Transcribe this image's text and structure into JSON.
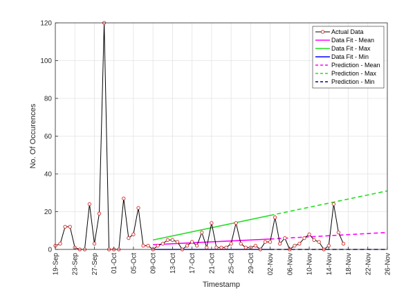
{
  "chart_data": {
    "type": "line",
    "title": "",
    "xlabel": "Timestamp",
    "ylabel": "No. Of Occurences",
    "ylim": [
      0,
      120
    ],
    "yticks": [
      0,
      20,
      40,
      60,
      80,
      100,
      120
    ],
    "xlim": [
      "2018-09-19",
      "2018-11-26"
    ],
    "xtick_dates": [
      "2018-09-19",
      "2018-09-23",
      "2018-09-27",
      "2018-10-01",
      "2018-10-05",
      "2018-10-09",
      "2018-10-13",
      "2018-10-17",
      "2018-10-21",
      "2018-10-25",
      "2018-10-29",
      "2018-11-02",
      "2018-11-06",
      "2018-11-10",
      "2018-11-14",
      "2018-11-18",
      "2018-11-22",
      "2018-11-26"
    ],
    "xtick_labels": [
      "19-Sep",
      "23-Sep",
      "27-Sep",
      "01-Oct",
      "05-Oct",
      "09-Oct",
      "13-Oct",
      "17-Oct",
      "21-Oct",
      "25-Oct",
      "29-Oct",
      "02-Nov",
      "06-Nov",
      "10-Nov",
      "14-Nov",
      "18-Nov",
      "22-Nov",
      "26-Nov"
    ],
    "grid": true,
    "legend_position": "top-right",
    "series": [
      {
        "name": "Actual Data",
        "color": "#000000",
        "marker_color": "#d62728",
        "x": [
          "2018-09-19",
          "2018-09-20",
          "2018-09-21",
          "2018-09-22",
          "2018-09-23",
          "2018-09-24",
          "2018-09-25",
          "2018-09-26",
          "2018-09-27",
          "2018-09-28",
          "2018-09-29",
          "2018-09-30",
          "2018-10-01",
          "2018-10-02",
          "2018-10-03",
          "2018-10-04",
          "2018-10-05",
          "2018-10-06",
          "2018-10-07",
          "2018-10-08",
          "2018-10-09",
          "2018-10-10",
          "2018-10-11",
          "2018-10-12",
          "2018-10-13",
          "2018-10-14",
          "2018-10-15",
          "2018-10-16",
          "2018-10-17",
          "2018-10-18",
          "2018-10-19",
          "2018-10-20",
          "2018-10-21",
          "2018-10-22",
          "2018-10-23",
          "2018-10-24",
          "2018-10-25",
          "2018-10-26",
          "2018-10-27",
          "2018-10-28",
          "2018-10-29",
          "2018-10-30",
          "2018-10-31",
          "2018-11-01",
          "2018-11-02",
          "2018-11-03",
          "2018-11-04",
          "2018-11-05",
          "2018-11-06",
          "2018-11-07",
          "2018-11-08",
          "2018-11-09",
          "2018-11-10",
          "2018-11-11",
          "2018-11-12",
          "2018-11-13",
          "2018-11-14",
          "2018-11-15",
          "2018-11-16",
          "2018-11-17"
        ],
        "y": [
          2,
          3,
          12,
          12,
          1,
          0,
          0,
          24,
          3,
          19,
          120,
          0,
          0,
          0,
          27,
          6,
          8,
          22,
          2,
          2,
          0,
          2,
          3,
          5,
          5,
          4,
          0,
          2,
          4,
          2,
          9,
          1,
          14,
          1,
          1,
          1,
          3,
          14,
          3,
          1,
          1,
          2,
          0,
          4,
          4,
          17,
          3,
          6,
          0,
          2,
          3,
          6,
          8,
          5,
          4,
          0,
          2,
          24,
          9,
          3
        ]
      },
      {
        "name": "Data Fit - Mean",
        "color": "#ff00ff",
        "style": "solid",
        "x": [
          "2018-10-09",
          "2018-11-02"
        ],
        "y": [
          2.5,
          5.5
        ]
      },
      {
        "name": "Data Fit - Max",
        "color": "#22dd22",
        "style": "solid",
        "x": [
          "2018-10-09",
          "2018-11-02"
        ],
        "y": [
          5,
          18
        ]
      },
      {
        "name": "Data Fit - Min",
        "color": "#0000ff",
        "style": "solid",
        "x": [
          "2018-10-09",
          "2018-11-02"
        ],
        "y": [
          0,
          0
        ]
      },
      {
        "name": "Prediction - Mean",
        "color": "#ff00ff",
        "style": "dashed",
        "x": [
          "2018-11-02",
          "2018-11-26"
        ],
        "y": [
          5.5,
          9
        ]
      },
      {
        "name": "Prediction - Max",
        "color": "#22dd22",
        "style": "dashed",
        "x": [
          "2018-11-02",
          "2018-11-26"
        ],
        "y": [
          18,
          31
        ]
      },
      {
        "name": "Prediction - Min",
        "color": "#00008b",
        "style": "dashed",
        "x": [
          "2018-11-02",
          "2018-11-26"
        ],
        "y": [
          0,
          0
        ]
      }
    ]
  }
}
